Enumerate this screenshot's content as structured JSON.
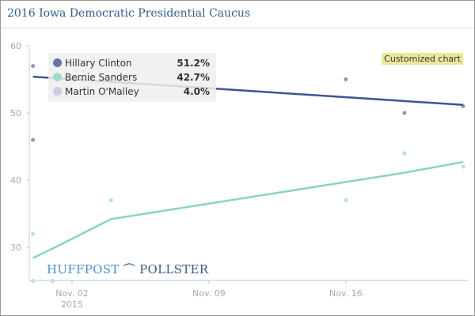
{
  "title": "2016 Iowa Democratic Presidential Caucus",
  "custom_badge": "Customized chart",
  "logo": {
    "left": "HUFFPOST",
    "right": "POLLSTER"
  },
  "chart_data": {
    "type": "line",
    "title": "2016 Iowa Democratic Presidential Caucus",
    "x_unit": "days since Nov. 02, 2015",
    "xlim": [
      -2.1,
      20.3
    ],
    "ylim": [
      25,
      60
    ],
    "yticks": [
      30,
      40,
      50,
      60
    ],
    "xticks": [
      {
        "x": 0,
        "label": "Nov. 02",
        "sub": "2015"
      },
      {
        "x": 7,
        "label": "Nov. 09",
        "sub": ""
      },
      {
        "x": 14,
        "label": "Nov. 16",
        "sub": ""
      }
    ],
    "legend_position": "top-left",
    "series": [
      {
        "name": "Hillary Clinton",
        "value_label": "51.2%",
        "color": "#3e5494",
        "dot_color": "#8a97c4",
        "trend": [
          [
            -2,
            55.4
          ],
          [
            20,
            51.2
          ]
        ],
        "points": [
          [
            -2,
            57
          ],
          [
            -2,
            46
          ],
          [
            14,
            55
          ],
          [
            17,
            50
          ],
          [
            20,
            51
          ]
        ]
      },
      {
        "name": "Bernie Sanders",
        "value_label": "42.7%",
        "color": "#88d4c4",
        "dot_color": "#b2e4d9",
        "trend": [
          [
            -2,
            28.4
          ],
          [
            -1,
            29.8
          ],
          [
            2,
            34.2
          ],
          [
            17,
            41.1
          ],
          [
            20,
            42.7
          ]
        ],
        "points": [
          [
            -2,
            32
          ],
          [
            -2,
            25
          ],
          [
            -1,
            25
          ],
          [
            2,
            37
          ],
          [
            14,
            37
          ],
          [
            17,
            44
          ],
          [
            20,
            42
          ]
        ]
      },
      {
        "name": "Martin O'Malley",
        "value_label": "4.0%",
        "color": "#cfcbe4",
        "dot_color": "#cfcbe4",
        "trend": [],
        "points": []
      }
    ]
  }
}
